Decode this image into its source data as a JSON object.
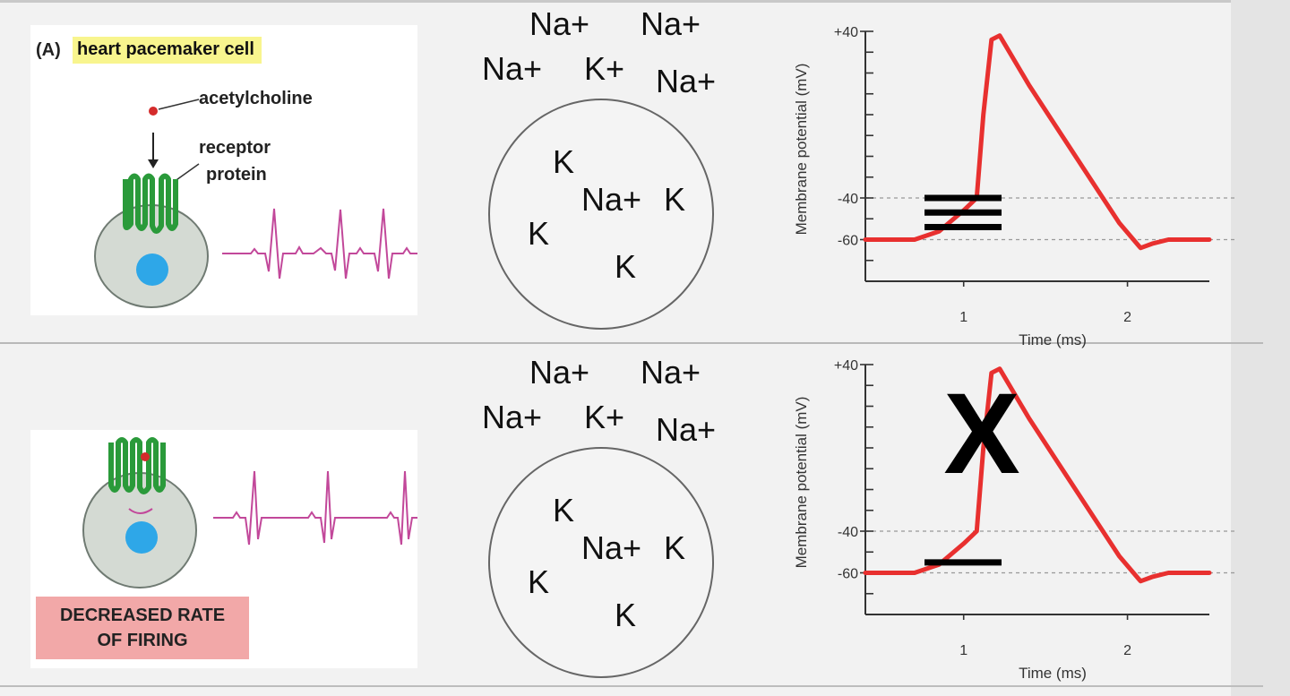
{
  "panel_a": {
    "label": "(A)",
    "title": "heart pacemaker cell",
    "acetylcholine_label": "acetylcholine",
    "receptor_label_line1": "receptor",
    "receptor_label_line2": "protein"
  },
  "panel_b": {
    "status_line1": "DECREASED RATE",
    "status_line2": "OF FIRING"
  },
  "ions": {
    "na_plus": "Na+",
    "k_plus": "K+",
    "k": "K"
  },
  "graph": {
    "y_axis_label": "Membrane potential (mV)",
    "x_axis_label": "Time (ms)",
    "y_ticks": [
      "+40",
      "-40",
      "-60"
    ],
    "x_ticks": [
      "1",
      "2"
    ],
    "block_mark": "X",
    "colors": {
      "trace": "#e8302f",
      "mark": "#000000"
    }
  },
  "chart_data": [
    {
      "type": "line",
      "title": "",
      "xlabel": "Time (ms)",
      "ylabel": "Membrane potential (mV)",
      "xlim": [
        0.4,
        2.5
      ],
      "ylim": [
        -80,
        40
      ],
      "y_ticks": [
        40,
        -40,
        -60
      ],
      "x_ticks": [
        1,
        2
      ],
      "reference_lines": [
        -40,
        -60
      ],
      "series": [
        {
          "x": [
            0.4,
            0.7,
            0.85,
            1.0,
            1.08,
            1.12,
            1.17,
            1.22,
            1.4,
            1.6,
            1.8,
            1.95,
            2.08,
            2.15,
            2.25,
            2.5
          ],
          "y": [
            -60,
            -60,
            -56,
            -46,
            -40,
            0,
            36,
            38,
            14,
            -10,
            -34,
            -52,
            -64,
            -62,
            -60,
            -60
          ]
        }
      ],
      "annotations": [
        "three stacked threshold bars near -45 mV"
      ]
    },
    {
      "type": "line",
      "title": "",
      "xlabel": "Time (ms)",
      "ylabel": "Membrane potential (mV)",
      "xlim": [
        0.4,
        2.5
      ],
      "ylim": [
        -80,
        40
      ],
      "y_ticks": [
        40,
        -40,
        -60
      ],
      "x_ticks": [
        1,
        2
      ],
      "reference_lines": [
        -40,
        -60
      ],
      "series": [
        {
          "x": [
            0.4,
            0.7,
            0.85,
            1.0,
            1.08,
            1.12,
            1.17,
            1.22,
            1.4,
            1.6,
            1.8,
            1.95,
            2.08,
            2.15,
            2.25,
            2.5
          ],
          "y": [
            -60,
            -60,
            -56,
            -46,
            -40,
            0,
            36,
            38,
            14,
            -10,
            -34,
            -52,
            -64,
            -62,
            -60,
            -60
          ]
        }
      ],
      "annotations": [
        "single threshold bar near -55 mV",
        "X mark over spike"
      ]
    }
  ]
}
